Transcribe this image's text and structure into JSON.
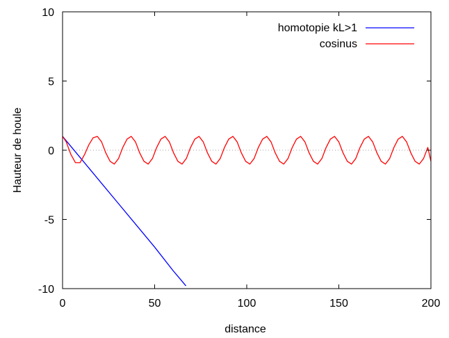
{
  "chart_data": {
    "type": "line",
    "title": "",
    "xlabel": "distance",
    "ylabel": "Hauteur de houle",
    "xlim": [
      0,
      200
    ],
    "ylim": [
      -10,
      10
    ],
    "xticks": [
      {
        "value": 0,
        "label": "0"
      },
      {
        "value": 50,
        "label": "50"
      },
      {
        "value": 100,
        "label": "100"
      },
      {
        "value": 150,
        "label": "150"
      },
      {
        "value": 200,
        "label": "200"
      }
    ],
    "yticks": [
      {
        "value": -10,
        "label": "-10"
      },
      {
        "value": -5,
        "label": "-5"
      },
      {
        "value": 0,
        "label": "0"
      },
      {
        "value": 5,
        "label": "5"
      },
      {
        "value": 10,
        "label": "10"
      }
    ],
    "grid": false,
    "zero_line": {
      "style": "dotted",
      "color": "#a0a0a0"
    },
    "legend": {
      "position": "top-right"
    },
    "series": [
      {
        "name": "homotopie kL>1",
        "color": "#0000ff",
        "x": [
          0,
          10,
          20,
          30,
          40,
          50,
          60,
          67
        ],
        "y": [
          1.0,
          -0.6,
          -2.2,
          -3.8,
          -5.4,
          -7.0,
          -8.7,
          -9.8
        ]
      },
      {
        "name": "cosinus",
        "color": "#ff0000",
        "x": [
          0,
          2,
          4.5,
          7,
          9.5,
          12,
          14.3,
          16.6,
          18.9,
          21.2,
          23.5,
          25.8,
          28.1,
          30.4,
          32.7,
          35,
          37.3,
          39.6,
          41.9,
          44.2,
          46.5,
          48.8,
          51.1,
          53.4,
          55.7,
          58,
          60.3,
          62.6,
          64.9,
          67.2,
          69.5,
          71.8,
          74.1,
          76.4,
          78.7,
          81,
          83.3,
          85.6,
          87.9,
          90.2,
          92.5,
          94.8,
          97.1,
          99.4,
          101.7,
          104,
          106.3,
          108.6,
          110.9,
          113.2,
          115.5,
          117.8,
          120.1,
          122.4,
          124.7,
          127,
          129.3,
          131.6,
          133.9,
          136.2,
          138.5,
          140.8,
          143.1,
          145.4,
          147.7,
          150,
          152.3,
          154.6,
          156.9,
          159.2,
          161.5,
          163.8,
          166.1,
          168.4,
          170.7,
          173,
          175.3,
          177.6,
          179.9,
          182.2,
          184.5,
          186.8,
          189.1,
          191.4,
          193.7,
          196,
          198.3,
          200
        ],
        "y": [
          1.0,
          0.6,
          -0.3,
          -0.9,
          -0.9,
          -0.3,
          0.4,
          0.9,
          1.0,
          0.6,
          -0.2,
          -0.8,
          -1.0,
          -0.6,
          0.2,
          0.8,
          1.0,
          0.6,
          -0.2,
          -0.8,
          -1.0,
          -0.6,
          0.2,
          0.8,
          1.0,
          0.6,
          -0.2,
          -0.8,
          -1.0,
          -0.6,
          0.2,
          0.8,
          1.0,
          0.6,
          -0.2,
          -0.8,
          -1.0,
          -0.6,
          0.2,
          0.8,
          1.0,
          0.6,
          -0.2,
          -0.8,
          -1.0,
          -0.6,
          0.2,
          0.8,
          1.0,
          0.6,
          -0.2,
          -0.8,
          -1.0,
          -0.6,
          0.2,
          0.8,
          1.0,
          0.6,
          -0.2,
          -0.8,
          -1.0,
          -0.6,
          0.2,
          0.8,
          1.0,
          0.6,
          -0.2,
          -0.8,
          -1.0,
          -0.6,
          0.2,
          0.8,
          1.0,
          0.6,
          -0.2,
          -0.8,
          -1.0,
          -0.6,
          0.2,
          0.8,
          1.0,
          0.6,
          -0.2,
          -0.8,
          -1.0,
          -0.6,
          0.2,
          -0.8
        ]
      }
    ]
  }
}
